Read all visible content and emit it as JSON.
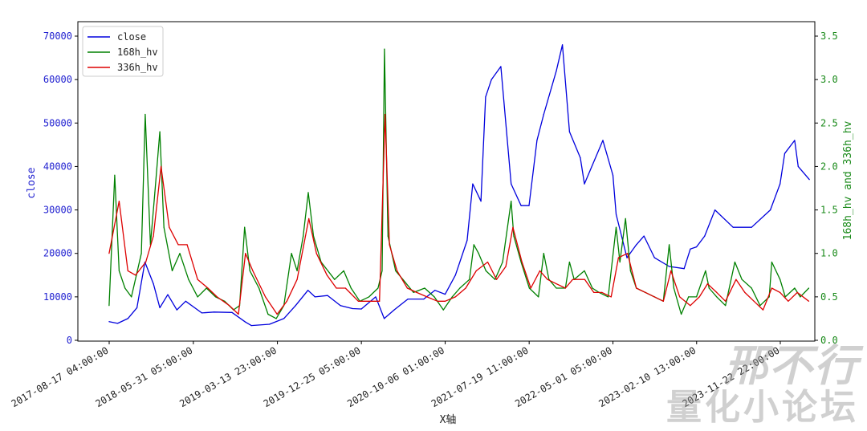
{
  "chart_data": {
    "type": "line",
    "xlabel": "X轴",
    "ylabel_left": "close",
    "ylabel_right": "168h_hv and 336h_hv",
    "x_tick_labels": [
      "2017-08-17 04:00:00",
      "2018-05-31 05:00:00",
      "2019-03-13 23:00:00",
      "2019-12-25 05:00:00",
      "2020-10-06 01:00:00",
      "2021-07-19 11:00:00",
      "2022-05-01 05:00:00",
      "2023-02-10 13:00:00",
      "2023-11-22 22:00:00"
    ],
    "y_left_ticks": [
      "0",
      "10000",
      "20000",
      "30000",
      "40000",
      "50000",
      "60000",
      "70000"
    ],
    "y_right_ticks": [
      "0.0",
      "0.5",
      "1.0",
      "1.5",
      "2.0",
      "2.5",
      "3.0",
      "3.5"
    ],
    "y_left_lim": [
      0,
      70000
    ],
    "y_right_lim": [
      0,
      3.5
    ],
    "legend_position": "upper-left",
    "colors": {
      "close": "#0000dd",
      "hv168": "#008000",
      "hv336": "#dd0000"
    },
    "series": [
      {
        "name": "close",
        "axis": "left",
        "x": [
          "2017-08-17",
          "2017-09-15",
          "2017-10-20",
          "2017-11-20",
          "2017-12-17",
          "2018-01-15",
          "2018-02-06",
          "2018-03-05",
          "2018-04-05",
          "2018-05-05",
          "2018-06-29",
          "2018-08-10",
          "2018-10-10",
          "2018-11-25",
          "2018-12-15",
          "2019-02-15",
          "2019-04-05",
          "2019-05-15",
          "2019-06-26",
          "2019-07-20",
          "2019-09-01",
          "2019-10-15",
          "2019-11-25",
          "2019-12-25",
          "2020-02-12",
          "2020-03-12",
          "2020-04-15",
          "2020-06-01",
          "2020-07-25",
          "2020-09-01",
          "2020-10-06",
          "2020-11-10",
          "2020-12-20",
          "2021-01-08",
          "2021-02-05",
          "2021-02-21",
          "2021-03-13",
          "2021-04-14",
          "2021-05-19",
          "2021-06-22",
          "2021-07-19",
          "2021-08-15",
          "2021-09-07",
          "2021-10-20",
          "2021-11-10",
          "2021-12-04",
          "2022-01-10",
          "2022-01-24",
          "2022-03-28",
          "2022-05-01",
          "2022-05-12",
          "2022-06-18",
          "2022-07-20",
          "2022-08-15",
          "2022-09-20",
          "2022-11-09",
          "2022-12-30",
          "2023-01-20",
          "2023-02-10",
          "2023-03-10",
          "2023-04-14",
          "2023-06-15",
          "2023-08-17",
          "2023-10-20",
          "2023-11-22",
          "2023-12-08",
          "2024-01-11",
          "2024-01-23",
          "2024-03-01"
        ],
        "values": [
          4300,
          3900,
          5000,
          7500,
          18000,
          13000,
          7500,
          10500,
          7000,
          9000,
          6300,
          6500,
          6400,
          4200,
          3400,
          3700,
          5000,
          8000,
          11500,
          10000,
          10300,
          8000,
          7300,
          7200,
          10000,
          5000,
          7000,
          9500,
          9500,
          11500,
          10600,
          15000,
          23000,
          36000,
          32000,
          56000,
          60000,
          63000,
          36000,
          31000,
          31000,
          46000,
          52000,
          62000,
          68000,
          48000,
          42000,
          36000,
          46000,
          38000,
          29000,
          19000,
          22000,
          24000,
          19000,
          17000,
          16500,
          21000,
          21500,
          24000,
          30000,
          26000,
          26000,
          30000,
          36000,
          43000,
          46000,
          40000,
          37000
        ]
      },
      {
        "name": "168h_hv",
        "axis": "right",
        "x": [
          "2017-08-17",
          "2017-09-05",
          "2017-09-20",
          "2017-10-10",
          "2017-11-01",
          "2017-12-05",
          "2017-12-18",
          "2018-01-05",
          "2018-01-20",
          "2018-02-06",
          "2018-02-20",
          "2018-03-20",
          "2018-04-15",
          "2018-05-15",
          "2018-06-15",
          "2018-07-15",
          "2018-08-15",
          "2018-09-15",
          "2018-10-15",
          "2018-11-05",
          "2018-11-22",
          "2018-12-10",
          "2019-01-10",
          "2019-02-10",
          "2019-03-10",
          "2019-04-05",
          "2019-05-01",
          "2019-05-20",
          "2019-06-10",
          "2019-06-27",
          "2019-07-15",
          "2019-08-10",
          "2019-09-25",
          "2019-10-26",
          "2019-11-20",
          "2019-12-20",
          "2020-01-20",
          "2020-02-20",
          "2020-03-05",
          "2020-03-13",
          "2020-03-25",
          "2020-04-20",
          "2020-05-15",
          "2020-06-20",
          "2020-07-28",
          "2020-08-30",
          "2020-09-30",
          "2020-10-30",
          "2020-11-25",
          "2020-12-28",
          "2021-01-12",
          "2021-01-28",
          "2021-02-22",
          "2021-03-25",
          "2021-04-20",
          "2021-05-19",
          "2021-05-28",
          "2021-06-22",
          "2021-07-20",
          "2021-08-20",
          "2021-09-07",
          "2021-09-25",
          "2021-10-20",
          "2021-11-20",
          "2021-12-04",
          "2021-12-20",
          "2022-01-24",
          "2022-02-20",
          "2022-03-15",
          "2022-04-15",
          "2022-05-12",
          "2022-05-25",
          "2022-06-13",
          "2022-06-30",
          "2022-07-20",
          "2022-08-20",
          "2022-09-20",
          "2022-10-20",
          "2022-11-09",
          "2022-11-25",
          "2022-12-20",
          "2023-01-14",
          "2023-02-10",
          "2023-03-13",
          "2023-03-25",
          "2023-04-20",
          "2023-05-20",
          "2023-06-21",
          "2023-07-15",
          "2023-08-17",
          "2023-09-15",
          "2023-10-16",
          "2023-10-25",
          "2023-11-22",
          "2023-12-10",
          "2024-01-11",
          "2024-01-30",
          "2024-02-28"
        ],
        "values": [
          0.4,
          1.9,
          0.8,
          0.6,
          0.5,
          1.0,
          2.6,
          1.1,
          1.7,
          2.4,
          1.3,
          0.8,
          1.0,
          0.7,
          0.5,
          0.6,
          0.5,
          0.45,
          0.35,
          0.4,
          1.3,
          0.8,
          0.6,
          0.3,
          0.25,
          0.4,
          1.0,
          0.8,
          1.2,
          1.7,
          1.2,
          0.9,
          0.7,
          0.8,
          0.6,
          0.45,
          0.5,
          0.6,
          0.8,
          3.35,
          1.2,
          0.8,
          0.7,
          0.55,
          0.6,
          0.5,
          0.35,
          0.5,
          0.6,
          0.7,
          1.1,
          1.0,
          0.8,
          0.7,
          0.9,
          1.6,
          1.2,
          0.9,
          0.6,
          0.5,
          1.0,
          0.7,
          0.6,
          0.6,
          0.9,
          0.7,
          0.8,
          0.6,
          0.55,
          0.5,
          1.3,
          0.9,
          1.4,
          0.8,
          0.6,
          0.55,
          0.5,
          0.45,
          1.1,
          0.6,
          0.3,
          0.5,
          0.5,
          0.8,
          0.6,
          0.5,
          0.4,
          0.9,
          0.7,
          0.6,
          0.4,
          0.5,
          0.9,
          0.7,
          0.5,
          0.6,
          0.5,
          0.6
        ]
      },
      {
        "name": "336h_hv",
        "axis": "right",
        "x": [
          "2017-08-17",
          "2017-09-20",
          "2017-10-20",
          "2017-11-15",
          "2017-12-20",
          "2018-01-15",
          "2018-02-10",
          "2018-03-10",
          "2018-04-10",
          "2018-05-10",
          "2018-06-15",
          "2018-07-20",
          "2018-08-20",
          "2018-10-01",
          "2018-11-01",
          "2018-11-25",
          "2018-12-20",
          "2019-02-01",
          "2019-03-13",
          "2019-04-15",
          "2019-05-20",
          "2019-06-29",
          "2019-07-25",
          "2019-08-30",
          "2019-10-01",
          "2019-11-01",
          "2019-12-15",
          "2020-01-25",
          "2020-02-25",
          "2020-03-15",
          "2020-03-30",
          "2020-04-25",
          "2020-05-30",
          "2020-07-01",
          "2020-08-05",
          "2020-09-10",
          "2020-10-06",
          "2020-11-10",
          "2020-12-15",
          "2021-01-20",
          "2021-02-28",
          "2021-03-30",
          "2021-05-01",
          "2021-05-25",
          "2021-06-25",
          "2021-07-25",
          "2021-08-25",
          "2021-09-20",
          "2021-10-20",
          "2021-11-20",
          "2021-12-15",
          "2022-01-25",
          "2022-02-25",
          "2022-03-25",
          "2022-04-25",
          "2022-05-20",
          "2022-06-20",
          "2022-07-20",
          "2022-08-20",
          "2022-09-20",
          "2022-10-20",
          "2022-11-15",
          "2022-12-15",
          "2023-01-20",
          "2023-02-20",
          "2023-03-20",
          "2023-04-20",
          "2023-05-20",
          "2023-06-25",
          "2023-07-25",
          "2023-08-25",
          "2023-09-25",
          "2023-10-25",
          "2023-11-22",
          "2023-12-20",
          "2024-01-20",
          "2024-02-28"
        ],
        "values": [
          1.0,
          1.6,
          0.8,
          0.75,
          0.9,
          1.2,
          2.0,
          1.3,
          1.1,
          1.1,
          0.7,
          0.6,
          0.5,
          0.4,
          0.3,
          1.0,
          0.8,
          0.5,
          0.3,
          0.45,
          0.7,
          1.4,
          1.0,
          0.75,
          0.6,
          0.6,
          0.45,
          0.45,
          0.45,
          2.6,
          1.1,
          0.8,
          0.6,
          0.55,
          0.5,
          0.45,
          0.45,
          0.5,
          0.6,
          0.8,
          0.9,
          0.7,
          0.85,
          1.3,
          0.9,
          0.6,
          0.8,
          0.7,
          0.65,
          0.6,
          0.7,
          0.7,
          0.55,
          0.55,
          0.5,
          0.95,
          1.0,
          0.6,
          0.55,
          0.5,
          0.45,
          0.8,
          0.5,
          0.4,
          0.5,
          0.65,
          0.55,
          0.45,
          0.7,
          0.55,
          0.45,
          0.35,
          0.6,
          0.55,
          0.45,
          0.55,
          0.45
        ]
      }
    ]
  },
  "watermark": {
    "line1": "邢不行",
    "line2": "量化小论坛"
  }
}
